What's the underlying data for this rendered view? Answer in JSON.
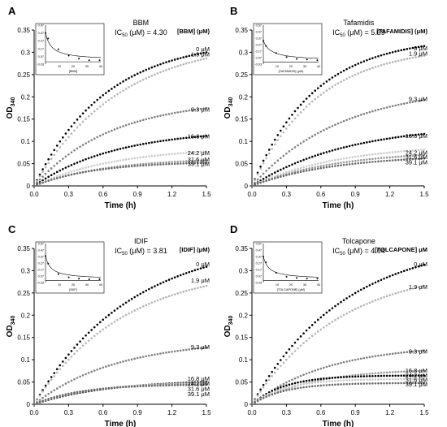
{
  "figure": {
    "panels": [
      {
        "letter": "A",
        "compound": "BBM",
        "ic50_label": "IC50 (μM) = 4.30",
        "ic50_prefix": "IC",
        "ic50_sub": "50",
        "ic50_suffix": " (μM) = 4.30",
        "concentration_header": "[BBM] (μM)",
        "inset_xlabel": "[BBM]",
        "ylabel_main": "OD",
        "ylabel_sub": "340",
        "xlabel": "Time (h)",
        "x_ticks": [
          "0.0",
          "0.3",
          "0.6",
          "0.9",
          "1.2",
          "1.5"
        ],
        "y_ticks": [
          "0",
          "0.05",
          "0.1",
          "0.15",
          "0.2",
          "0.25",
          "0.3",
          "0.35"
        ],
        "series_labels": [
          "0 μM",
          "1.9 μM",
          "9.3 μM",
          "16.8 μM",
          "24.2 μM",
          "31.6 μM",
          "39.1 μM"
        ],
        "inset_y_ticks": [
          "0.47",
          "0.37",
          "0.27",
          "0.17",
          "0.07",
          "-0.03"
        ],
        "inset_x_ticks": [
          "10",
          "20",
          "30",
          "40"
        ]
      },
      {
        "letter": "B",
        "compound": "Tafamidis",
        "ic50_prefix": "IC",
        "ic50_sub": "50",
        "ic50_suffix": " (μM) = 5.69",
        "concentration_header": "[TAFAMIDIS] (μM)",
        "inset_xlabel": "[TAFAMIDIS] (μM)",
        "ylabel_main": "OD",
        "ylabel_sub": "340",
        "xlabel": "Time (h)",
        "x_ticks": [
          "0.0",
          "0.3",
          "0.6",
          "0.9",
          "1.2",
          "1.5"
        ],
        "y_ticks": [
          "0",
          "0.05",
          "0.1",
          "0.15",
          "0.2",
          "0.25",
          "0.3",
          "0.35"
        ],
        "series_labels": [
          "0 μM",
          "1.9 μM",
          "9.3 μM",
          "16.8 μM",
          "24.2 μM",
          "31.6 μM",
          "39.1 μM"
        ],
        "inset_y_ticks": [
          "0.57",
          "0.47",
          "0.37",
          "0.27",
          "0.17",
          "0.07",
          "-0.03"
        ],
        "inset_x_ticks": [
          "10",
          "20",
          "30",
          "40"
        ]
      },
      {
        "letter": "C",
        "compound": "IDIF",
        "ic50_prefix": "IC",
        "ic50_sub": "50",
        "ic50_suffix": " (μM) = 3.81",
        "concentration_header": "[IDIF] (μM)",
        "inset_xlabel": "[IDIF]",
        "ylabel_main": "OD",
        "ylabel_sub": "340",
        "xlabel": "Time (h)",
        "x_ticks": [
          "0.0",
          "0.3",
          "0.6",
          "0.9",
          "1.2",
          "1.5"
        ],
        "y_ticks": [
          "0",
          "0.05",
          "0.1",
          "0.15",
          "0.2",
          "0.25",
          "0.3",
          "0.35"
        ],
        "series_labels": [
          "0 μM",
          "1.9 μM",
          "9.3 μM",
          "16.8 μM",
          "24.2 μM",
          "31.6 μM",
          "39.1 μM"
        ],
        "inset_y_ticks": [
          "0.57",
          "0.47",
          "0.37",
          "0.27",
          "0.17",
          "0.07",
          "-0.03"
        ],
        "inset_x_ticks": [
          "10",
          "20",
          "30",
          "40"
        ]
      },
      {
        "letter": "D",
        "compound": "Tolcapone",
        "ic50_prefix": "IC",
        "ic50_sub": "50",
        "ic50_suffix": " (μM) = 4.04",
        "concentration_header": "[TOLCAPONE] μM",
        "inset_xlabel": "[TOLCAPONE] (μM)",
        "ylabel_main": "OD",
        "ylabel_sub": "340",
        "xlabel": "Time (h)",
        "x_ticks": [
          "0.0",
          "0.3",
          "0.6",
          "0.9",
          "1.2",
          "1.5"
        ],
        "y_ticks": [
          "0",
          "0.05",
          "0.1",
          "0.15",
          "0.2",
          "0.25",
          "0.3",
          "0.35"
        ],
        "series_labels": [
          "0 μM",
          "1.9 μM",
          "9.3 μM",
          "16.8 μM",
          "24.2 μM",
          "31.6 μM",
          "39.1 μM"
        ],
        "inset_y_ticks": [
          "0.57",
          "0.47",
          "0.37",
          "0.27",
          "0.17",
          "0.07",
          "-0.03"
        ],
        "inset_x_ticks": [
          "10",
          "20",
          "30",
          "40"
        ]
      }
    ]
  },
  "chart_data": [
    {
      "type": "scatter",
      "panel": "A",
      "xlim": [
        0,
        1.5
      ],
      "ylim": [
        0,
        0.35
      ],
      "series": [
        {
          "name": "0 μM",
          "color": "#000000",
          "plateau": 0.33,
          "k": 1.6
        },
        {
          "name": "1.9 μM",
          "color": "#b5b5b5",
          "plateau": 0.33,
          "k": 1.35
        },
        {
          "name": "9.3 μM",
          "color": "#7f7f7f",
          "plateau": 0.195,
          "k": 1.5
        },
        {
          "name": "16.8 μM",
          "color": "#000000",
          "plateau": 0.128,
          "k": 1.4
        },
        {
          "name": "24.2 μM",
          "color": "#cccccc",
          "plateau": 0.088,
          "k": 1.4
        },
        {
          "name": "31.6 μM",
          "color": "#9a9a9a",
          "plateau": 0.063,
          "k": 1.6
        },
        {
          "name": "39.1 μM",
          "color": "#6a6a6a",
          "plateau": 0.055,
          "k": 1.9
        }
      ],
      "inset": {
        "xlim": [
          0,
          40
        ],
        "ylim": [
          -0.03,
          0.47
        ],
        "concentrations": [
          0,
          1.9,
          9.3,
          16.8,
          24.2,
          31.6,
          39.1
        ],
        "values": [
          0.37,
          0.3,
          0.16,
          0.08,
          0.04,
          0.02,
          0.02
        ]
      }
    },
    {
      "type": "scatter",
      "panel": "B",
      "xlim": [
        0,
        1.5
      ],
      "ylim": [
        0,
        0.35
      ],
      "series": [
        {
          "name": "0 μM",
          "color": "#000000",
          "plateau": 0.335,
          "k": 1.85
        },
        {
          "name": "1.9 μM",
          "color": "#b5b5b5",
          "plateau": 0.315,
          "k": 1.75
        },
        {
          "name": "9.3 μM",
          "color": "#7f7f7f",
          "plateau": 0.225,
          "k": 1.3
        },
        {
          "name": "16.8 μM",
          "color": "#000000",
          "plateau": 0.14,
          "k": 1.2
        },
        {
          "name": "24.2 μM",
          "color": "#cccccc",
          "plateau": 0.095,
          "k": 1.3
        },
        {
          "name": "31.6 μM",
          "color": "#9a9a9a",
          "plateau": 0.08,
          "k": 1.35
        },
        {
          "name": "39.1 μM",
          "color": "#6a6a6a",
          "plateau": 0.07,
          "k": 1.4
        }
      ],
      "inset": {
        "xlim": [
          0,
          40
        ],
        "ylim": [
          -0.03,
          0.57
        ],
        "concentrations": [
          0,
          1.9,
          9.3,
          16.8,
          24.2,
          31.6,
          39.1
        ],
        "values": [
          0.33,
          0.25,
          0.14,
          0.08,
          0.05,
          0.04,
          0.03
        ]
      }
    },
    {
      "type": "scatter",
      "panel": "C",
      "xlim": [
        0,
        1.5
      ],
      "ylim": [
        0,
        0.35
      ],
      "series": [
        {
          "name": "0 μM",
          "color": "#000000",
          "plateau": 0.37,
          "k": 1.2
        },
        {
          "name": "1.9 μM",
          "color": "#b5b5b5",
          "plateau": 0.31,
          "k": 1.3
        },
        {
          "name": "9.3 μM",
          "color": "#7f7f7f",
          "plateau": 0.145,
          "k": 1.4
        },
        {
          "name": "16.8 μM",
          "color": "#000000",
          "plateau": 0.055,
          "k": 1.6
        },
        {
          "name": "24.2 μM",
          "color": "#cccccc",
          "plateau": 0.05,
          "k": 2.0
        },
        {
          "name": "31.6 μM",
          "color": "#9a9a9a",
          "plateau": 0.048,
          "k": 2.2
        },
        {
          "name": "39.1 μM",
          "color": "#6a6a6a",
          "plateau": 0.045,
          "k": 2.5
        }
      ],
      "inset": {
        "xlim": [
          0,
          40
        ],
        "ylim": [
          -0.03,
          0.57
        ],
        "concentrations": [
          0,
          1.9,
          9.3,
          16.8,
          24.2,
          31.6,
          39.1
        ],
        "values": [
          0.38,
          0.26,
          0.1,
          0.05,
          0.03,
          0.02,
          0.02
        ]
      }
    },
    {
      "type": "scatter",
      "panel": "D",
      "xlim": [
        0,
        1.5
      ],
      "ylim": [
        0,
        0.35
      ],
      "series": [
        {
          "name": "0 μM",
          "color": "#000000",
          "plateau": 0.37,
          "k": 1.25
        },
        {
          "name": "1.9 μM",
          "color": "#b5b5b5",
          "plateau": 0.31,
          "k": 1.3
        },
        {
          "name": "9.3 μM",
          "color": "#7f7f7f",
          "plateau": 0.135,
          "k": 1.5
        },
        {
          "name": "16.8 μM",
          "color": "#9a9a9a",
          "plateau": 0.08,
          "k": 1.9
        },
        {
          "name": "24.2 μM",
          "color": "#000000",
          "plateau": 0.065,
          "k": 3.5
        },
        {
          "name": "31.6 μM",
          "color": "#cccccc",
          "plateau": 0.057,
          "k": 3.5
        },
        {
          "name": "39.1 μM",
          "color": "#6a6a6a",
          "plateau": 0.048,
          "k": 3.5
        }
      ],
      "inset": {
        "xlim": [
          0,
          40
        ],
        "ylim": [
          -0.03,
          0.57
        ],
        "concentrations": [
          0,
          1.9,
          9.3,
          16.8,
          24.2,
          31.6,
          39.1
        ],
        "values": [
          0.37,
          0.28,
          0.12,
          0.06,
          0.04,
          0.03,
          0.03
        ]
      }
    }
  ]
}
